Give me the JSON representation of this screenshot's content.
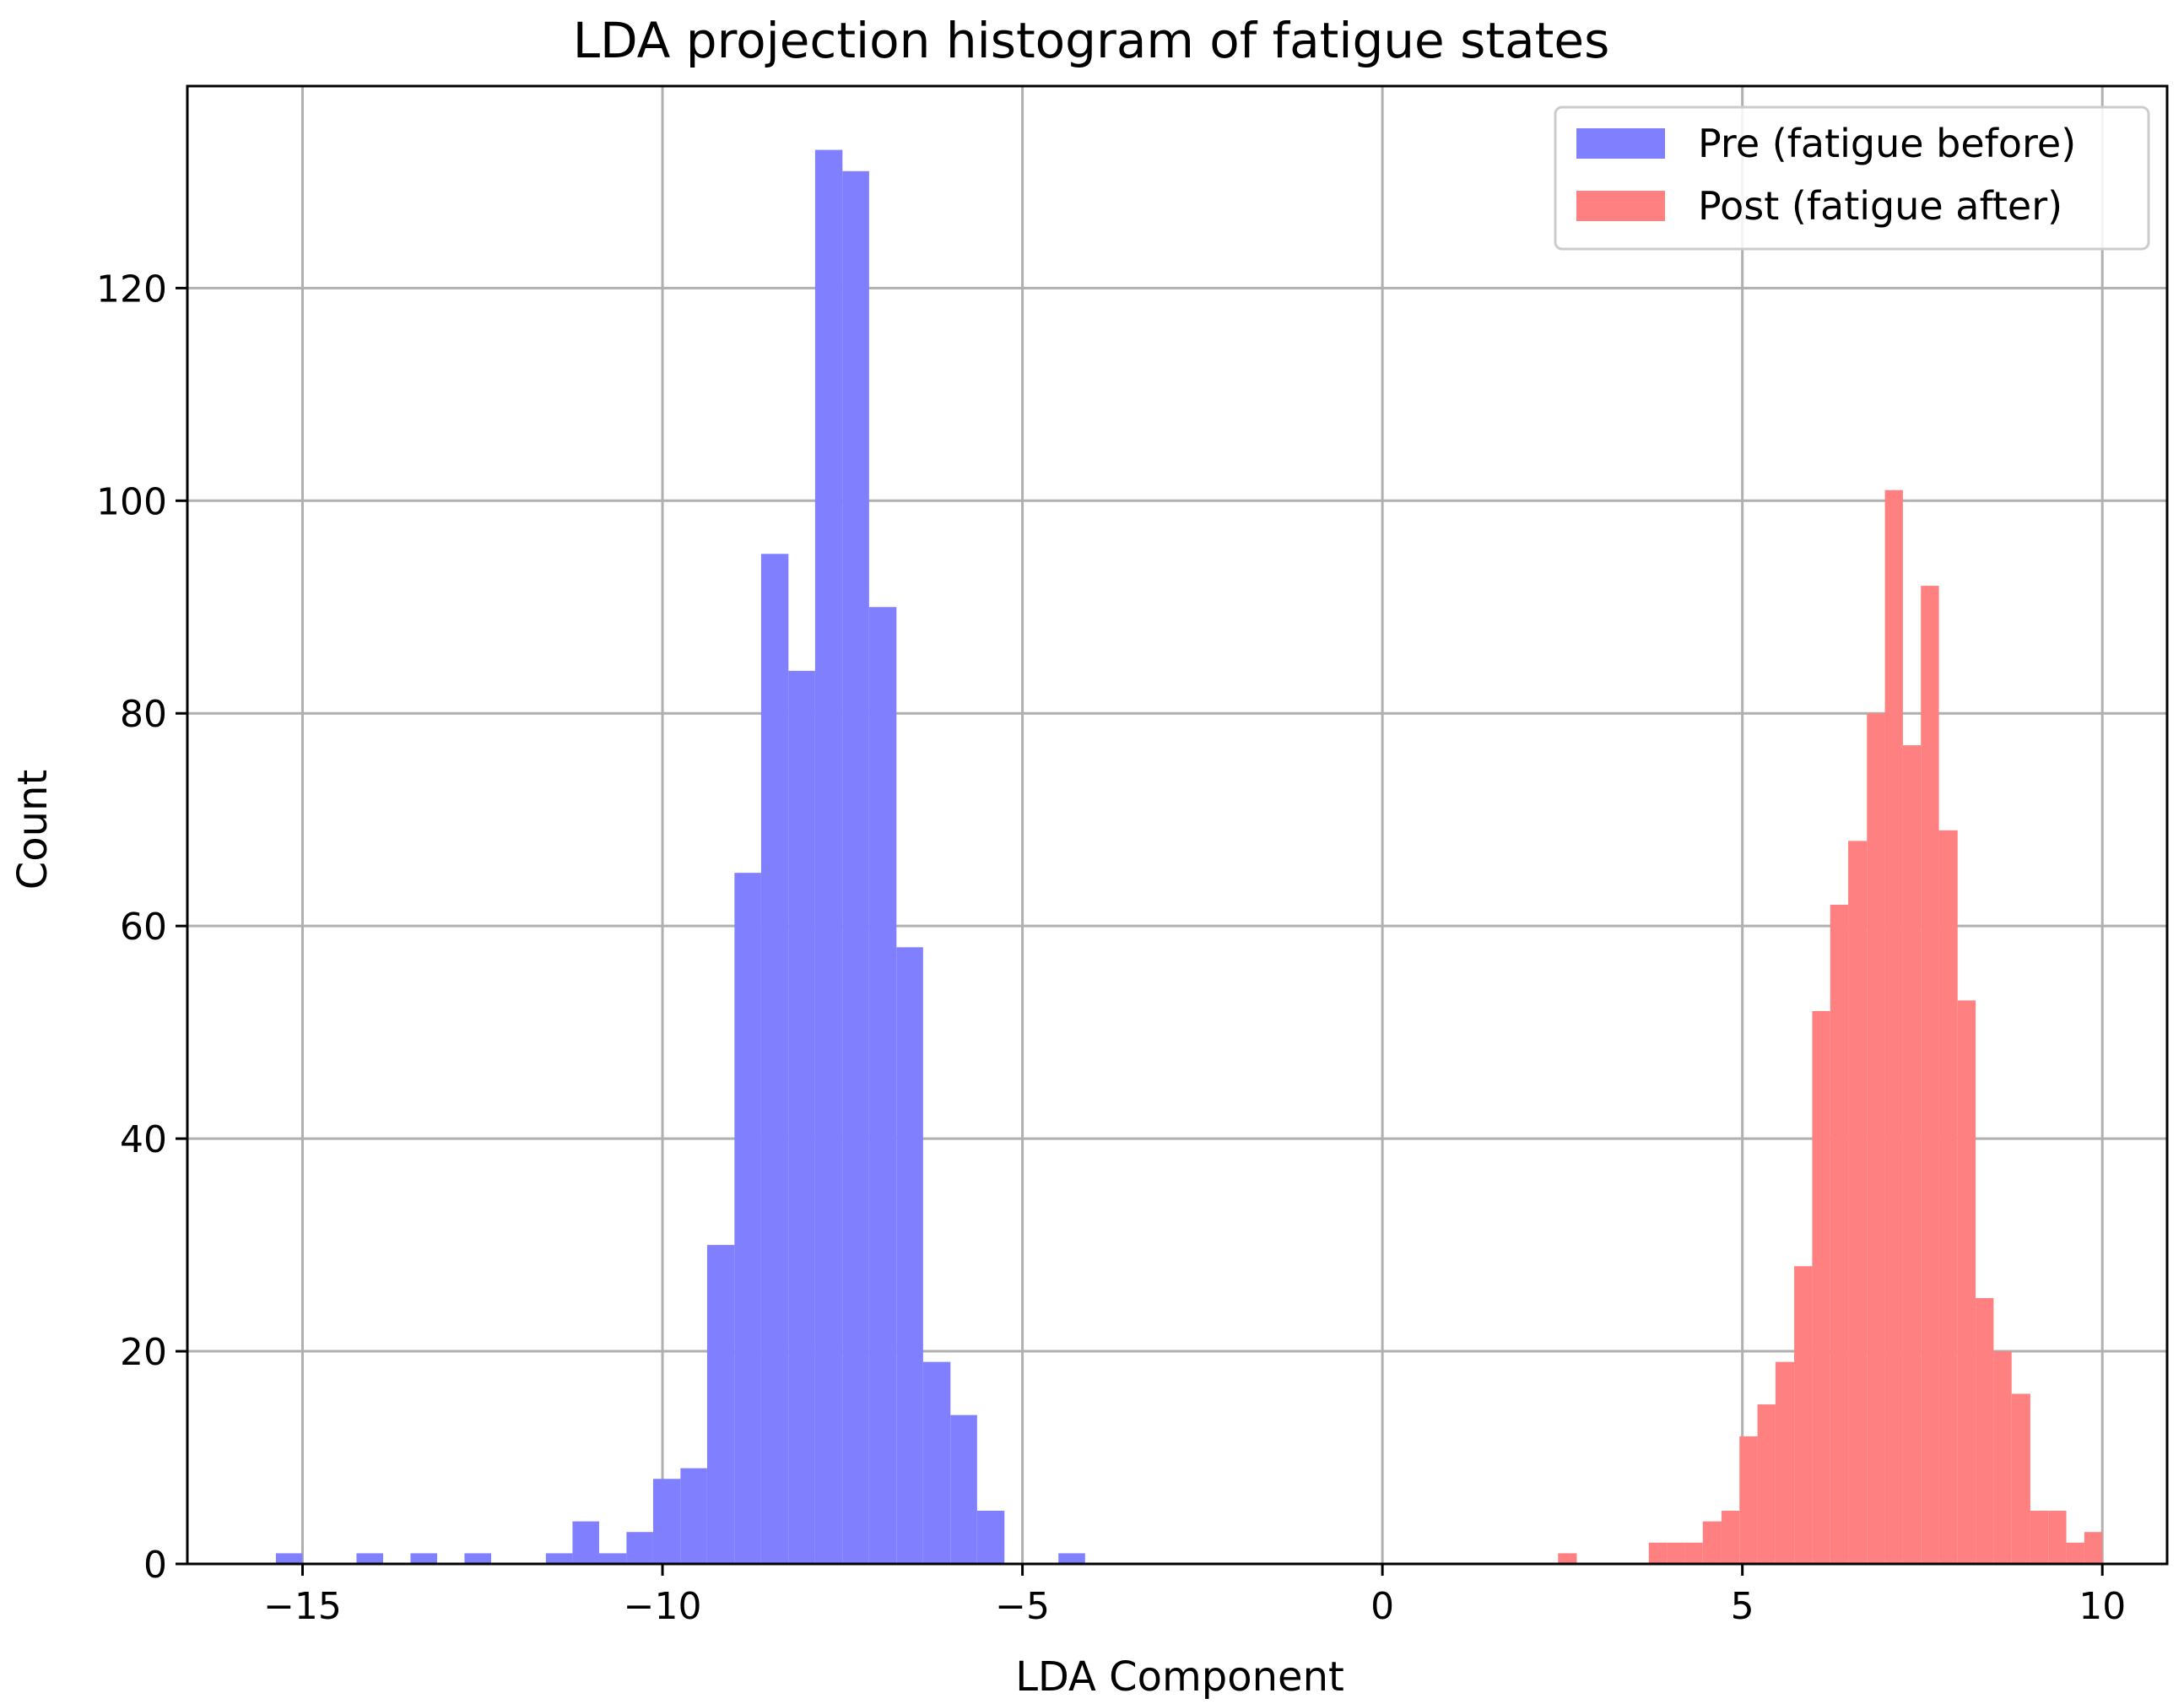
{
  "chart_data": {
    "type": "histogram",
    "title": "LDA projection histogram of fatigue states",
    "xlabel": "LDA Component",
    "ylabel": "Count",
    "xlim": [
      -16.6,
      10.9
    ],
    "ylim": [
      0,
      139
    ],
    "xticks": [
      -15,
      -10,
      -5,
      0,
      5,
      10
    ],
    "xtick_labels": [
      "−15",
      "−10",
      "−5",
      "0",
      "5",
      "10"
    ],
    "yticks": [
      0,
      20,
      40,
      60,
      80,
      100,
      120
    ],
    "ytick_labels": [
      "0",
      "20",
      "40",
      "60",
      "80",
      "100",
      "120"
    ],
    "grid": true,
    "legend_position": "top-right",
    "series": [
      {
        "name": "Pre (fatigue before)",
        "color": "#8080ff",
        "bins": [
          {
            "x0": -15.37,
            "x1": -15.0,
            "count": 1
          },
          {
            "x0": -14.25,
            "x1": -13.88,
            "count": 1
          },
          {
            "x0": -13.5,
            "x1": -13.13,
            "count": 1
          },
          {
            "x0": -12.75,
            "x1": -12.38,
            "count": 1
          },
          {
            "x0": -11.62,
            "x1": -11.25,
            "count": 1
          },
          {
            "x0": -11.25,
            "x1": -10.88,
            "count": 4
          },
          {
            "x0": -10.88,
            "x1": -10.5,
            "count": 1
          },
          {
            "x0": -10.5,
            "x1": -10.13,
            "count": 3
          },
          {
            "x0": -10.13,
            "x1": -9.75,
            "count": 8
          },
          {
            "x0": -9.75,
            "x1": -9.38,
            "count": 9
          },
          {
            "x0": -9.38,
            "x1": -9.0,
            "count": 30
          },
          {
            "x0": -9.0,
            "x1": -8.63,
            "count": 65
          },
          {
            "x0": -8.63,
            "x1": -8.25,
            "count": 95
          },
          {
            "x0": -8.25,
            "x1": -7.88,
            "count": 84
          },
          {
            "x0": -7.88,
            "x1": -7.5,
            "count": 133
          },
          {
            "x0": -7.5,
            "x1": -7.13,
            "count": 131
          },
          {
            "x0": -7.13,
            "x1": -6.75,
            "count": 90
          },
          {
            "x0": -6.75,
            "x1": -6.38,
            "count": 58
          },
          {
            "x0": -6.38,
            "x1": -6.0,
            "count": 19
          },
          {
            "x0": -6.0,
            "x1": -5.63,
            "count": 14
          },
          {
            "x0": -5.63,
            "x1": -5.25,
            "count": 5
          },
          {
            "x0": -4.5,
            "x1": -4.13,
            "count": 1
          }
        ]
      },
      {
        "name": "Post (fatigue after)",
        "color": "#ff8080",
        "bins": [
          {
            "x0": 2.44,
            "x1": 2.7,
            "count": 1
          },
          {
            "x0": 3.7,
            "x1": 3.95,
            "count": 2
          },
          {
            "x0": 3.95,
            "x1": 4.2,
            "count": 2
          },
          {
            "x0": 4.2,
            "x1": 4.45,
            "count": 2
          },
          {
            "x0": 4.45,
            "x1": 4.71,
            "count": 4
          },
          {
            "x0": 4.71,
            "x1": 4.96,
            "count": 5
          },
          {
            "x0": 4.96,
            "x1": 5.21,
            "count": 12
          },
          {
            "x0": 5.21,
            "x1": 5.46,
            "count": 15
          },
          {
            "x0": 5.46,
            "x1": 5.72,
            "count": 19
          },
          {
            "x0": 5.72,
            "x1": 5.97,
            "count": 28
          },
          {
            "x0": 5.97,
            "x1": 6.22,
            "count": 52
          },
          {
            "x0": 6.22,
            "x1": 6.47,
            "count": 62
          },
          {
            "x0": 6.47,
            "x1": 6.73,
            "count": 68
          },
          {
            "x0": 6.73,
            "x1": 6.98,
            "count": 80
          },
          {
            "x0": 6.98,
            "x1": 7.23,
            "count": 101
          },
          {
            "x0": 7.23,
            "x1": 7.48,
            "count": 77
          },
          {
            "x0": 7.48,
            "x1": 7.73,
            "count": 92
          },
          {
            "x0": 7.73,
            "x1": 7.99,
            "count": 69
          },
          {
            "x0": 7.99,
            "x1": 8.24,
            "count": 53
          },
          {
            "x0": 8.24,
            "x1": 8.49,
            "count": 25
          },
          {
            "x0": 8.49,
            "x1": 8.74,
            "count": 20
          },
          {
            "x0": 8.74,
            "x1": 9.0,
            "count": 16
          },
          {
            "x0": 9.0,
            "x1": 9.25,
            "count": 5
          },
          {
            "x0": 9.25,
            "x1": 9.5,
            "count": 5
          },
          {
            "x0": 9.5,
            "x1": 9.75,
            "count": 2
          },
          {
            "x0": 9.75,
            "x1": 10.0,
            "count": 3
          }
        ]
      }
    ]
  }
}
